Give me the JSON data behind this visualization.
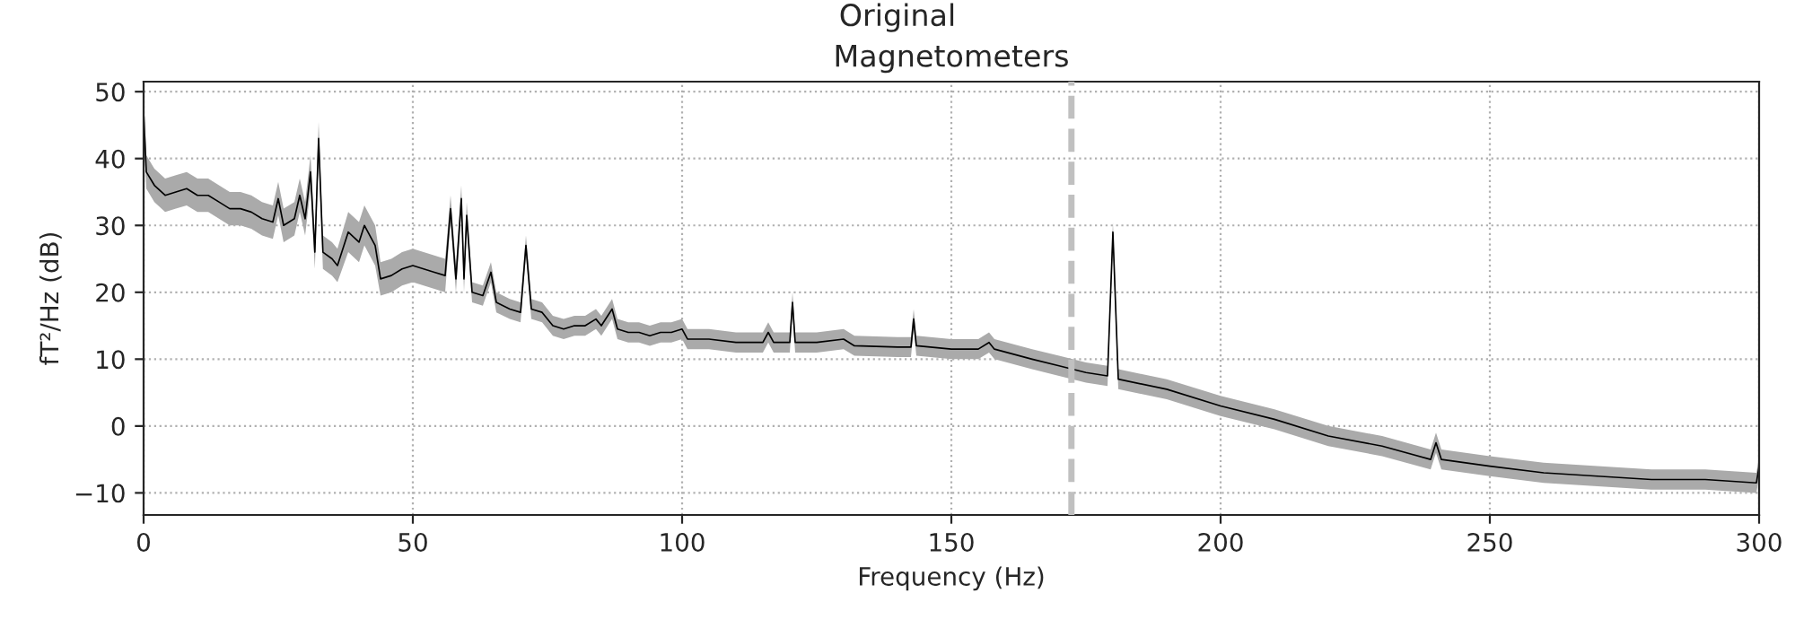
{
  "chart_data": {
    "type": "line",
    "title": "Original",
    "subtitle": "Magnetometers",
    "xlabel": "Frequency (Hz)",
    "ylabel": "fT²/Hz (dB)",
    "xlim": [
      0,
      300
    ],
    "xticks": [
      0,
      50,
      100,
      150,
      200,
      250,
      300
    ],
    "ylim": [
      -13.3,
      51.5
    ],
    "yticks": [
      {
        "value": -10,
        "label": "−10"
      },
      0,
      10,
      20,
      30,
      40,
      50
    ],
    "grid": true,
    "line_style": "solid",
    "series": [
      {
        "color": "#000000",
        "x": [
          0,
          0.5,
          2,
          4,
          6,
          8,
          10,
          12,
          14,
          16,
          18,
          20,
          22,
          24,
          25,
          26,
          28,
          29,
          30,
          31,
          31.8,
          32.5,
          33.3,
          35,
          36,
          38,
          40,
          41,
          43,
          44,
          46,
          48,
          50,
          52,
          54,
          56,
          57,
          58,
          59,
          59.5,
          60,
          61,
          63,
          64.5,
          65.5,
          68,
          70,
          71,
          72,
          74,
          76,
          78,
          80,
          82,
          84,
          85,
          87,
          88,
          90,
          92,
          94,
          96,
          98,
          100,
          101,
          105,
          110,
          115,
          116,
          117,
          120,
          120.5,
          121,
          125,
          130,
          132,
          140,
          142.5,
          143,
          143.5,
          150,
          155,
          157,
          158,
          165,
          170,
          175,
          179,
          180,
          181,
          190,
          200,
          210,
          220,
          230,
          239,
          240,
          241,
          250,
          260,
          270,
          280,
          290,
          299.5,
          300
        ],
        "values": [
          47,
          38,
          36,
          34.5,
          35,
          35.5,
          34.5,
          34.5,
          33.5,
          32.5,
          32.5,
          32,
          31,
          30.5,
          34,
          30,
          31,
          34.5,
          31,
          38,
          26,
          43,
          26,
          25,
          24,
          29,
          27.5,
          30,
          27,
          22,
          22.5,
          23.5,
          24,
          23.5,
          23,
          22.5,
          32.5,
          22,
          34,
          22,
          31.5,
          20,
          19.5,
          23,
          18.5,
          17.5,
          17,
          27,
          17.5,
          17,
          15,
          14.5,
          15,
          15,
          16,
          15,
          17.5,
          14.5,
          14,
          14,
          13.5,
          14,
          14,
          14.5,
          13,
          13,
          12.5,
          12.5,
          14,
          12.5,
          12.5,
          18.5,
          12.5,
          12.5,
          13,
          12,
          11.8,
          11.8,
          16,
          12,
          11.5,
          11.5,
          12.5,
          11.5,
          10,
          9,
          8,
          7.5,
          29,
          7,
          5.5,
          3,
          1,
          -1.5,
          -3,
          -5,
          -2.5,
          -5,
          -6,
          -7,
          -7.5,
          -8,
          -8,
          -8.5,
          -6
        ],
        "lower": [
          44.5,
          35.5,
          33.5,
          32,
          32.5,
          33,
          32,
          32,
          31,
          30,
          30,
          29.5,
          28.5,
          28,
          31.5,
          27.5,
          28.5,
          32,
          28.5,
          35.5,
          23.5,
          40.5,
          23.5,
          22.5,
          21.5,
          26,
          24.5,
          27,
          24,
          19.5,
          20,
          21,
          21.5,
          21,
          20.5,
          20,
          30.5,
          20,
          32,
          20,
          29.5,
          18.5,
          18,
          21.5,
          17,
          16,
          15.5,
          25.5,
          16,
          15.5,
          13.5,
          13,
          13.5,
          13.5,
          14.5,
          13.5,
          16,
          13,
          12.5,
          12.5,
          12,
          12.5,
          12.5,
          13,
          11.5,
          11.5,
          11,
          11,
          12.5,
          11,
          11,
          17,
          11,
          11,
          11.5,
          10.5,
          10.3,
          10.3,
          14.5,
          10.5,
          10,
          10,
          11,
          10,
          8.5,
          7.5,
          6.5,
          6,
          27.5,
          5.5,
          4,
          1.5,
          -0.5,
          -3,
          -4.5,
          -6.5,
          -4,
          -6.5,
          -7.5,
          -8.5,
          -9,
          -9.5,
          -9.5,
          -10,
          -7.5
        ],
        "upper": [
          49.5,
          40.5,
          38.5,
          37,
          37.5,
          38,
          37,
          37,
          36,
          35,
          35,
          34.5,
          33.5,
          33,
          36.5,
          32.5,
          33.5,
          37,
          33.5,
          40.5,
          28.5,
          45.5,
          28.5,
          27.5,
          26.5,
          32,
          30.5,
          33,
          30,
          24.5,
          25,
          26,
          26.5,
          26,
          25.5,
          25,
          34.5,
          24,
          36,
          24,
          33.5,
          21.5,
          21,
          24.5,
          20,
          19,
          18.5,
          28.5,
          19,
          18.5,
          16.5,
          16,
          16.5,
          16.5,
          17.5,
          16.5,
          19,
          16,
          15.5,
          15.5,
          15,
          15.5,
          15.5,
          16,
          14.5,
          14.5,
          14,
          14,
          15.5,
          14,
          14,
          20,
          14,
          14,
          14.5,
          13.5,
          13.3,
          13.3,
          17.5,
          13.5,
          13,
          13,
          14,
          13,
          11.5,
          10.5,
          9.5,
          9,
          30.5,
          8.5,
          7,
          4.5,
          2.5,
          0,
          -1.5,
          -3.5,
          -1,
          -3.5,
          -4.5,
          -5.5,
          -6,
          -6.5,
          -6.5,
          -7,
          -4.5
        ]
      }
    ],
    "ref_lines": [
      {
        "axis": "x",
        "value": 172.3,
        "color": "#c0c0c0",
        "line_style": "dashed"
      }
    ]
  }
}
